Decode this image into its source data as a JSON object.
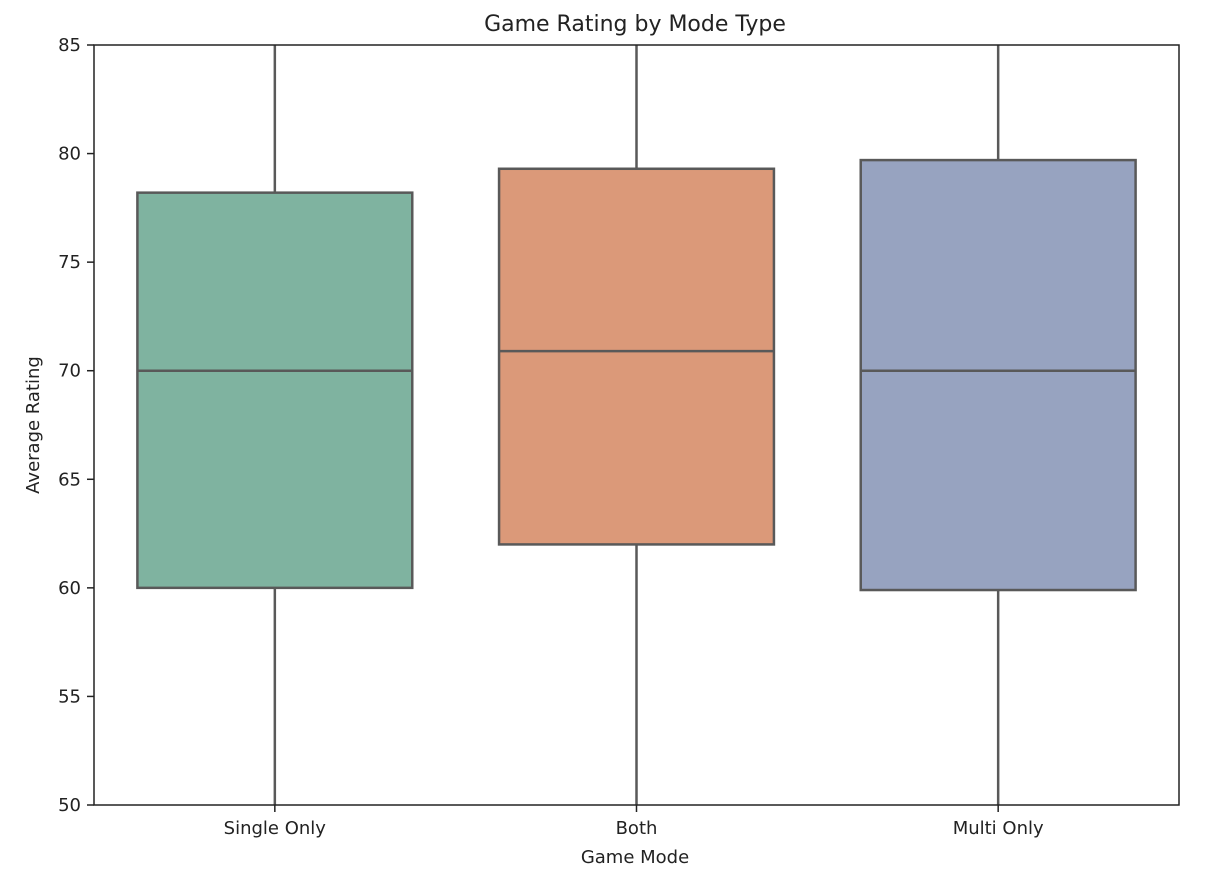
{
  "chart_data": {
    "type": "box",
    "title": "Game Rating by Mode Type",
    "xlabel": "Game Mode",
    "ylabel": "Average Rating",
    "ylim": [
      50,
      85
    ],
    "yticks": [
      "50",
      "55",
      "60",
      "65",
      "70",
      "75",
      "80",
      "85"
    ],
    "grid": false,
    "categories": [
      "Single Only",
      "Both",
      "Multi Only"
    ],
    "boxes": [
      {
        "category": "Single Only",
        "whisker_low": 50,
        "q1": 60.0,
        "median": 70.0,
        "q3": 78.2,
        "whisker_high": 85,
        "color": "#7fb3a0"
      },
      {
        "category": "Both",
        "whisker_low": 50,
        "q1": 62.0,
        "median": 70.9,
        "q3": 79.3,
        "whisker_high": 85,
        "color": "#db9979"
      },
      {
        "category": "Multi Only",
        "whisker_low": 50,
        "q1": 59.9,
        "median": 70.0,
        "q3": 79.7,
        "whisker_high": 85,
        "color": "#97a3c0"
      }
    ],
    "line_color": "#595959"
  }
}
